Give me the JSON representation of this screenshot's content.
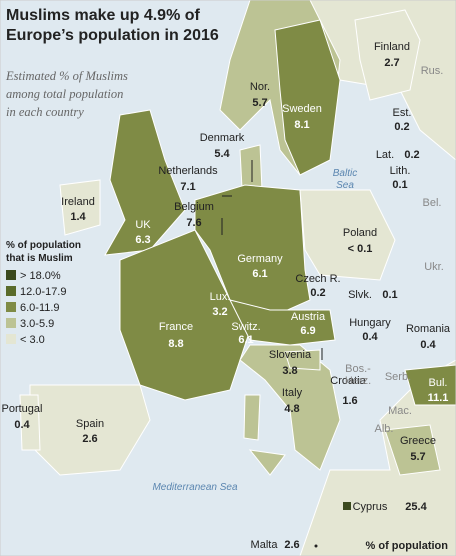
{
  "header": {
    "title_line1": "Muslims make up 4.9% of",
    "title_line2": "Europe’s population in 2016",
    "subtitle_line1": "Estimated % of Muslims",
    "subtitle_line2": "among total population",
    "subtitle_line3": "in each country"
  },
  "legend": {
    "title_line1": "% of population",
    "title_line2": "that is Muslim",
    "items": [
      {
        "label": "> 18.0%",
        "color": "#3b4a1e"
      },
      {
        "label": "12.0-17.9",
        "color": "#5a6b2a"
      },
      {
        "label": "6.0-11.9",
        "color": "#7f8b45"
      },
      {
        "label": "3.0-5.9",
        "color": "#bcc394"
      },
      {
        "label": "< 3.0",
        "color": "#e4e6d3"
      }
    ]
  },
  "countries": [
    {
      "name": "Finland",
      "value": 2.7
    },
    {
      "name": "Nor.",
      "value": 5.7
    },
    {
      "name": "Sweden",
      "value": 8.1
    },
    {
      "name": "Est.",
      "value": 0.2
    },
    {
      "name": "Lat.",
      "value": 0.2
    },
    {
      "name": "Lith.",
      "value": 0.1
    },
    {
      "name": "Denmark",
      "value": 5.4
    },
    {
      "name": "Netherlands",
      "value": 7.1
    },
    {
      "name": "Belgium",
      "value": 7.6
    },
    {
      "name": "Ireland",
      "value": 1.4
    },
    {
      "name": "UK",
      "value": 6.3
    },
    {
      "name": "Poland",
      "value": "< 0.1"
    },
    {
      "name": "Germany",
      "value": 6.1
    },
    {
      "name": "Czech R.",
      "value": 0.2
    },
    {
      "name": "Slvk.",
      "value": 0.1
    },
    {
      "name": "Lux.",
      "value": 3.2
    },
    {
      "name": "Austria",
      "value": 6.9
    },
    {
      "name": "Hungary",
      "value": 0.4
    },
    {
      "name": "Romania",
      "value": 0.4
    },
    {
      "name": "France",
      "value": 8.8
    },
    {
      "name": "Switz.",
      "value": 6.1
    },
    {
      "name": "Slovenia",
      "value": 3.8
    },
    {
      "name": "Croatia",
      "value": 1.6
    },
    {
      "name": "Italy",
      "value": 4.8
    },
    {
      "name": "Bul.",
      "value": 11.1
    },
    {
      "name": "Greece",
      "value": 5.7
    },
    {
      "name": "Portugal",
      "value": 0.4
    },
    {
      "name": "Spain",
      "value": 2.6
    },
    {
      "name": "Cyprus",
      "value": 25.4
    },
    {
      "name": "Malta",
      "value": 2.6
    }
  ],
  "other_labels": [
    "Rus.",
    "Bel.",
    "Ukr.",
    "Bos.-",
    "Herz.",
    "Serb.",
    "Mac.",
    "Alb.",
    "Baltic",
    "Sea",
    "Mediterranean Sea"
  ],
  "footer": {
    "note": "% of population"
  }
}
